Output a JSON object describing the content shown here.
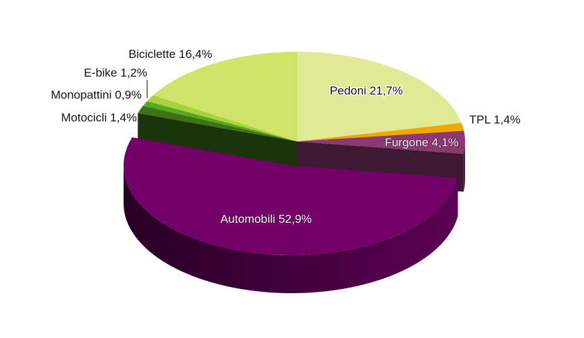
{
  "chart_data": {
    "type": "pie",
    "categories": [
      "Pedoni",
      "TPL",
      "Furgone",
      "Automobili",
      "Motocicli",
      "Monopattini",
      "E-bike",
      "Biciclette"
    ],
    "values": [
      21.7,
      1.4,
      4.1,
      52.9,
      1.4,
      0.9,
      1.2,
      16.4
    ],
    "value_labels": [
      "21,7%",
      "1,4%",
      "4,1%",
      "52,9%",
      "1,4%",
      "0,9%",
      "1,2%",
      "16,4%"
    ],
    "colors": [
      "#e0ea94",
      "#f0a800",
      "#8a3a70",
      "#730068",
      "#3d7314",
      "#5aa61e",
      "#a9d33c",
      "#d0e468"
    ]
  }
}
